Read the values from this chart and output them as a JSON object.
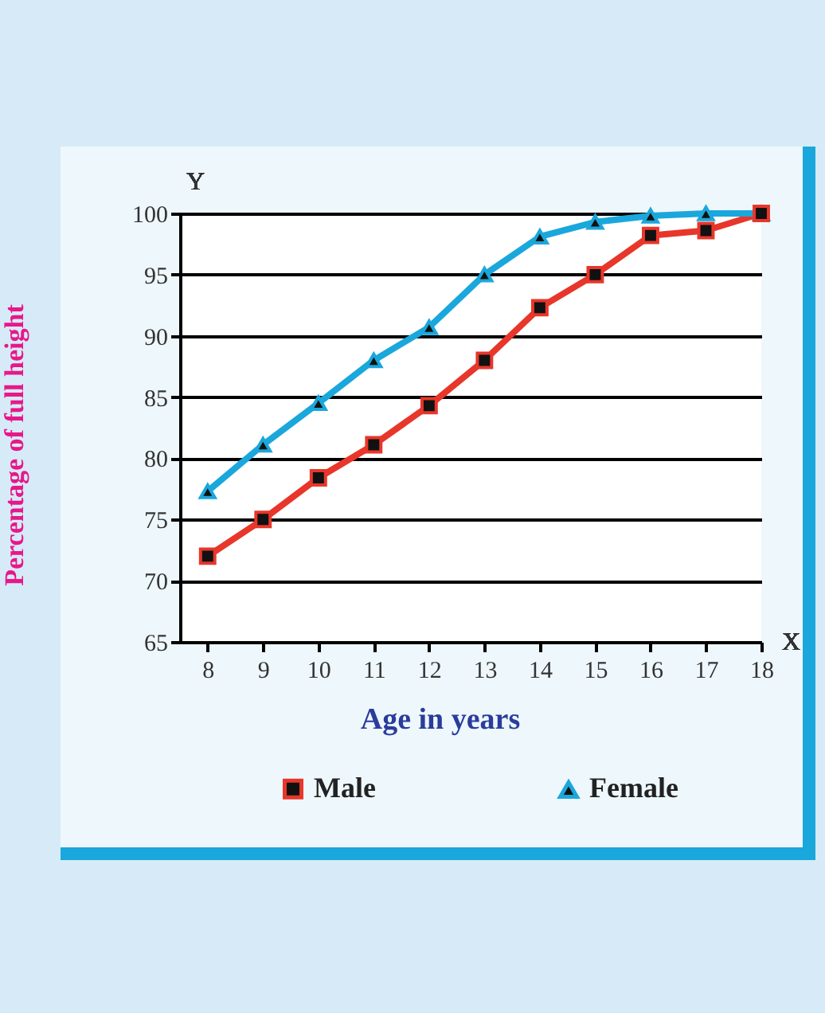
{
  "chart_data": {
    "type": "line",
    "xlabel": "Age in years",
    "ylabel": "Percentage of full height",
    "annotations": [
      "Y",
      "X"
    ],
    "x": [
      8,
      9,
      10,
      11,
      12,
      13,
      14,
      15,
      16,
      17,
      18
    ],
    "xlim": [
      7.5,
      18
    ],
    "xticks": [
      8,
      9,
      10,
      11,
      12,
      13,
      14,
      15,
      16,
      17,
      18
    ],
    "ylim": [
      65,
      100
    ],
    "yticks": [
      65,
      70,
      75,
      80,
      85,
      90,
      95,
      100
    ],
    "grid": "y",
    "legend": "bottom",
    "series": [
      {
        "name": "Male",
        "color": "#e8362a",
        "marker": "square",
        "values": [
          72,
          75,
          78.4,
          81.1,
          84.3,
          88,
          92.3,
          95,
          98.2,
          98.6,
          100
        ]
      },
      {
        "name": "Female",
        "color": "#1aa7dc",
        "marker": "triangle",
        "values": [
          77.3,
          81.1,
          84.5,
          88,
          90.7,
          95,
          98.1,
          99.3,
          99.8,
          100,
          100
        ]
      }
    ]
  }
}
